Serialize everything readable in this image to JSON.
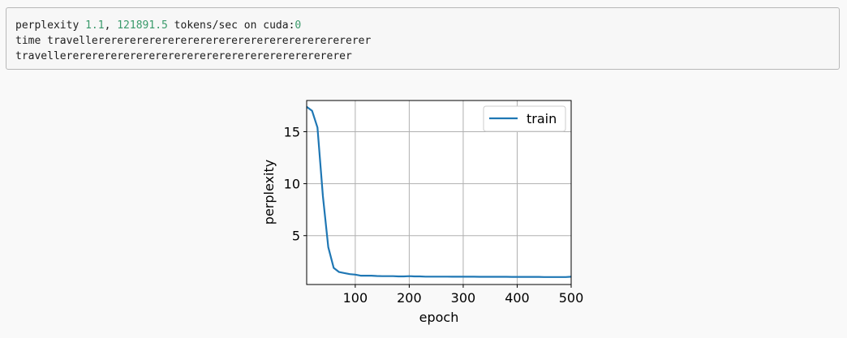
{
  "output": {
    "line1": {
      "p1": "perplexity ",
      "v1": "1.1",
      "p2": ", ",
      "v2": "121891.5",
      "p3": " tokens/sec on cuda:",
      "v3": "0"
    },
    "line2": "time travellerererererererererererererererererererererer",
    "line3": "travellererererererererererererererererererererererer"
  },
  "colors": {
    "series": "#1f77b4",
    "grid": "#b0b0b0",
    "number": "#3a9a6b"
  },
  "chart_data": {
    "type": "line",
    "xlabel": "epoch",
    "ylabel": "perplexity",
    "xlim": [
      10,
      500
    ],
    "ylim": [
      0.3,
      18
    ],
    "xticks": [
      100,
      200,
      300,
      400,
      500
    ],
    "yticks": [
      5,
      10,
      15
    ],
    "grid": true,
    "legend": "top-right",
    "series": [
      {
        "name": "train",
        "x": [
          10,
          20,
          30,
          40,
          50,
          60,
          70,
          80,
          90,
          100,
          110,
          120,
          130,
          140,
          150,
          160,
          170,
          180,
          190,
          200,
          210,
          220,
          230,
          240,
          250,
          260,
          270,
          280,
          290,
          300,
          310,
          320,
          330,
          340,
          350,
          360,
          370,
          380,
          390,
          400,
          410,
          420,
          430,
          440,
          450,
          460,
          470,
          480,
          490,
          500
        ],
        "y": [
          17.4,
          17.0,
          15.4,
          8.8,
          3.9,
          1.9,
          1.5,
          1.4,
          1.3,
          1.25,
          1.15,
          1.15,
          1.15,
          1.12,
          1.1,
          1.1,
          1.1,
          1.08,
          1.08,
          1.1,
          1.08,
          1.08,
          1.06,
          1.06,
          1.06,
          1.06,
          1.06,
          1.05,
          1.05,
          1.05,
          1.05,
          1.05,
          1.04,
          1.04,
          1.04,
          1.04,
          1.04,
          1.04,
          1.03,
          1.03,
          1.03,
          1.03,
          1.03,
          1.03,
          1.02,
          1.02,
          1.02,
          1.02,
          1.02,
          1.05
        ]
      }
    ]
  }
}
